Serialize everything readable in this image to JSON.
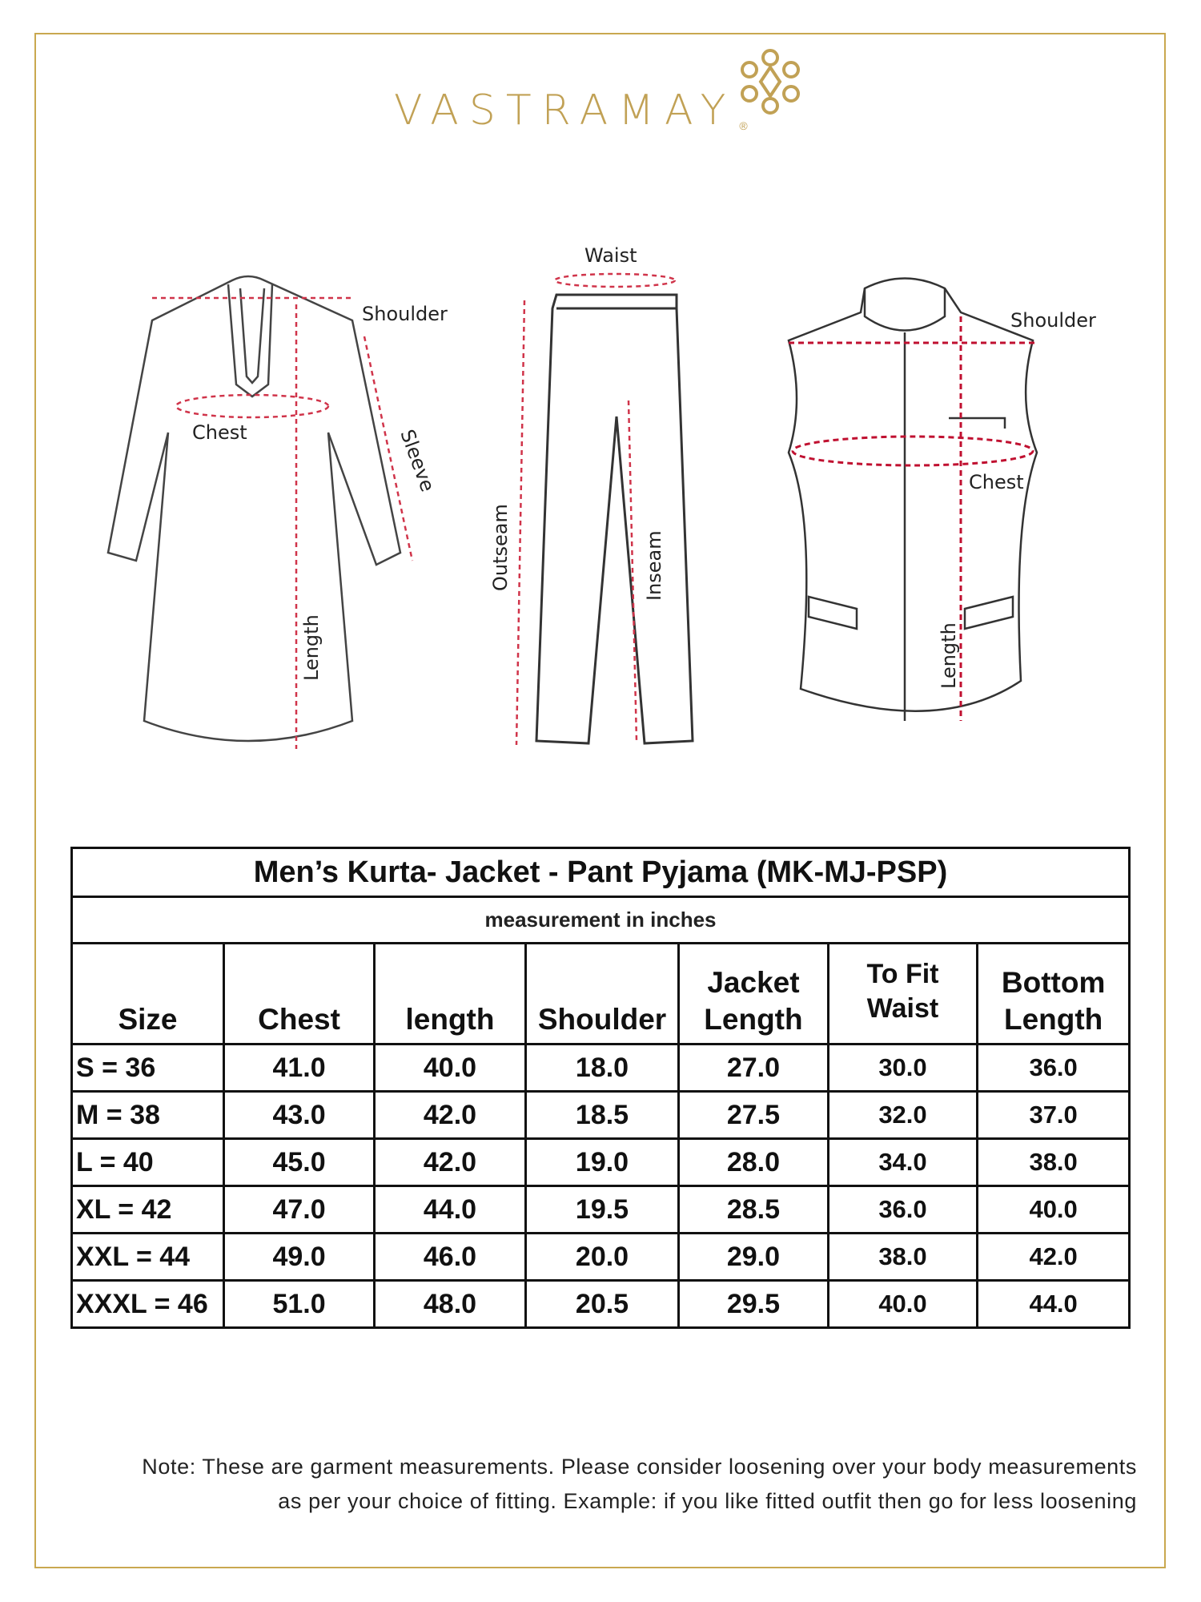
{
  "brand": {
    "name": "VASTRAMAY",
    "registered": "®",
    "accent": "#c1a155"
  },
  "diagram": {
    "kurta": {
      "shoulder": "Shoulder",
      "chest": "Chest",
      "sleeve": "Sleeve",
      "length": "Length"
    },
    "pyjama": {
      "waist": "Waist",
      "outseam": "Outseam",
      "inseam": "Inseam"
    },
    "jacket": {
      "shoulder": "Shoulder",
      "chest": "Chest",
      "length": "Length"
    },
    "measure_line_color": "#d0344a"
  },
  "table": {
    "title": "Men’s Kurta- Jacket - Pant Pyjama (MK-MJ-PSP)",
    "subtitle": "measurement in inches",
    "headers": [
      [
        "Size"
      ],
      [
        "Chest"
      ],
      [
        "length"
      ],
      [
        "Shoulder"
      ],
      [
        "Jacket",
        "Length"
      ],
      [
        "To Fit",
        "Waist"
      ],
      [
        "Bottom",
        "Length"
      ]
    ],
    "rows": [
      [
        "S = 36",
        "41.0",
        "40.0",
        "18.0",
        "27.0",
        "30.0",
        "36.0"
      ],
      [
        "M = 38",
        "43.0",
        "42.0",
        "18.5",
        "27.5",
        "32.0",
        "37.0"
      ],
      [
        "L = 40",
        "45.0",
        "42.0",
        "19.0",
        "28.0",
        "34.0",
        "38.0"
      ],
      [
        "XL = 42",
        "47.0",
        "44.0",
        "19.5",
        "28.5",
        "36.0",
        "40.0"
      ],
      [
        "XXL = 44",
        "49.0",
        "46.0",
        "20.0",
        "29.0",
        "38.0",
        "42.0"
      ],
      [
        "XXXL = 46",
        "51.0",
        "48.0",
        "20.5",
        "29.5",
        "40.0",
        "44.0"
      ]
    ]
  },
  "note": {
    "line1": "Note: These are garment measurements. Please consider loosening over your body measurements",
    "line2": "as per your choice of fitting. Example: if you like fitted outfit then go for less loosening"
  }
}
